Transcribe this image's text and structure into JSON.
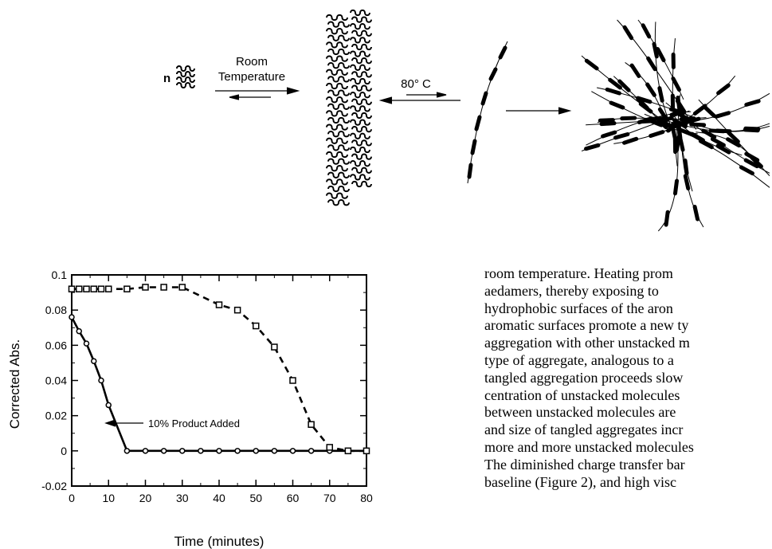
{
  "scheme": {
    "n_label": "n",
    "arrow1_label_line1": "Room",
    "arrow1_label_line2": "Temperature",
    "arrow2_label": "80° C"
  },
  "chart_data": {
    "type": "scatter",
    "xlabel": "Time (minutes)",
    "ylabel": "Corrected Abs.",
    "xlim": [
      0,
      80
    ],
    "ylim": [
      -0.02,
      0.1
    ],
    "xticks": [
      "0",
      "10",
      "20",
      "30",
      "40",
      "50",
      "60",
      "70",
      "80"
    ],
    "yticks": [
      "0.1",
      "0.08",
      "0.06",
      "0.04",
      "0.02",
      "0",
      "-0.02"
    ],
    "grid": false,
    "annotation": "10% Product Added",
    "series": [
      {
        "name": "10% Product Added",
        "marker": "circle",
        "line": "solid",
        "x": [
          0,
          2,
          4,
          6,
          8,
          10,
          15,
          20,
          25,
          30,
          35,
          40,
          45,
          50,
          55,
          60,
          65,
          70,
          75,
          80
        ],
        "y": [
          0.076,
          0.068,
          0.061,
          0.051,
          0.04,
          0.026,
          0,
          0,
          0,
          0,
          0,
          0,
          0,
          0,
          0,
          0,
          0,
          0,
          0,
          0
        ]
      },
      {
        "marker": "square",
        "line": "dashed",
        "x": [
          0,
          2,
          4,
          6,
          8,
          10,
          15,
          20,
          25,
          30,
          40,
          45,
          50,
          55,
          60,
          65,
          70,
          75,
          80
        ],
        "y": [
          0.092,
          0.092,
          0.092,
          0.092,
          0.092,
          0.092,
          0.092,
          0.093,
          0.093,
          0.093,
          0.083,
          0.08,
          0.071,
          0.059,
          0.04,
          0.015,
          0.002,
          0,
          0
        ]
      }
    ]
  },
  "body_text": {
    "lines": [
      "room temperature. Heating prom",
      "aedamers, thereby exposing to",
      "hydrophobic surfaces of the aron",
      "aromatic surfaces promote a new ty",
      "aggregation with other unstacked m",
      "type of aggregate, analogous to a",
      "tangled aggregation proceeds slow",
      "centration of unstacked molecules",
      "between unstacked molecules are",
      "and size of tangled aggregates incr",
      "more and more unstacked molecules",
      "The diminished charge transfer bar",
      "baseline (Figure 2), and high visc"
    ]
  }
}
